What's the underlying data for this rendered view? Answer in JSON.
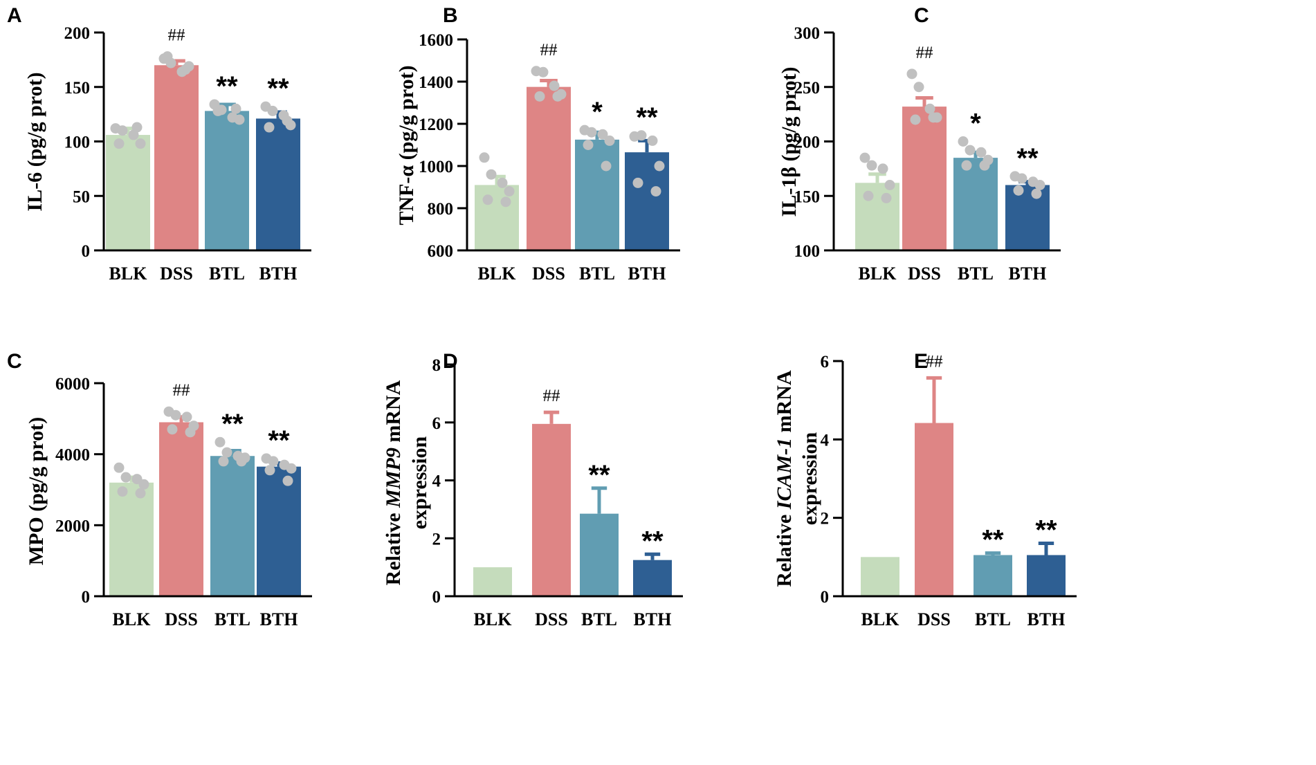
{
  "colors": {
    "BLK": "#c5dcbc",
    "DSS": "#de8585",
    "BTL": "#619db2",
    "BTH": "#2e5f93",
    "dots": "#c0c0c0",
    "axis": "#000000"
  },
  "chart_data": [
    {
      "panel": "A",
      "type": "bar",
      "ylabel_parts": [
        {
          "text": "IL-6 (pg/g prot)",
          "italic": false
        }
      ],
      "ylim": [
        0,
        200
      ],
      "yticks": [
        "0",
        "50",
        "100",
        "150",
        "200"
      ],
      "categories": [
        "BLK",
        "DSS",
        "BTL",
        "BTH"
      ],
      "values": [
        106,
        170,
        128,
        121
      ],
      "errors": [
        6,
        4,
        6,
        6
      ],
      "points": [
        [
          112,
          110,
          106,
          98,
          98,
          113
        ],
        [
          176,
          172,
          164,
          169,
          178,
          166
        ],
        [
          134,
          129,
          122,
          120,
          128,
          130
        ],
        [
          132,
          128,
          124,
          115,
          113,
          119
        ]
      ],
      "annotations": [
        "",
        "##",
        "**",
        "**"
      ]
    },
    {
      "panel": "B",
      "type": "bar",
      "ylabel_parts": [
        {
          "text": "TNF-α (pg/g prot)",
          "italic": false
        }
      ],
      "ylim": [
        600,
        1600
      ],
      "yticks": [
        "600",
        "800",
        "1000",
        "1200",
        "1400",
        "1600"
      ],
      "categories": [
        "BLK",
        "DSS",
        "BTL",
        "BTH"
      ],
      "values": [
        910,
        1375,
        1125,
        1065
      ],
      "errors": [
        40,
        30,
        35,
        55
      ],
      "points": [
        [
          1040,
          960,
          920,
          880,
          840,
          830
        ],
        [
          1450,
          1445,
          1380,
          1340,
          1330,
          1330
        ],
        [
          1170,
          1160,
          1150,
          1120,
          1100,
          1000
        ],
        [
          1140,
          1145,
          1120,
          1000,
          920,
          880
        ]
      ],
      "annotations": [
        "",
        "##",
        "*",
        "**"
      ]
    },
    {
      "panel": "C",
      "type": "bar",
      "ylabel_parts": [
        {
          "text": "IL-1β (pg/g prot)",
          "italic": false
        }
      ],
      "ylim": [
        100,
        300
      ],
      "yticks": [
        "100",
        "150",
        "200",
        "250",
        "300"
      ],
      "categories": [
        "BLK",
        "DSS",
        "BTL",
        "BTH"
      ],
      "values": [
        162,
        232,
        185,
        160
      ],
      "errors": [
        8,
        8,
        5,
        3
      ],
      "points": [
        [
          185,
          178,
          175,
          160,
          150,
          148
        ],
        [
          262,
          250,
          230,
          222,
          220,
          222
        ],
        [
          200,
          192,
          190,
          183,
          178,
          178
        ],
        [
          168,
          166,
          163,
          160,
          155,
          152
        ]
      ],
      "annotations": [
        "",
        "##",
        "*",
        "**"
      ]
    },
    {
      "panel": "C",
      "type": "bar",
      "ylabel_parts": [
        {
          "text": "MPO (pg/g prot)",
          "italic": false
        }
      ],
      "ylim": [
        0,
        6000
      ],
      "yticks": [
        "0",
        "2000",
        "4000",
        "6000"
      ],
      "categories": [
        "BLK",
        "DSS",
        "BTL",
        "BTH"
      ],
      "values": [
        3200,
        4900,
        3950,
        3650
      ],
      "errors": [
        150,
        150,
        150,
        100
      ],
      "points": [
        [
          3620,
          3350,
          3300,
          3150,
          2950,
          2900
        ],
        [
          5200,
          5100,
          5050,
          4800,
          4700,
          4620
        ],
        [
          4340,
          4050,
          3950,
          3900,
          3800,
          3800
        ],
        [
          3880,
          3800,
          3700,
          3600,
          3550,
          3250
        ]
      ],
      "annotations": [
        "",
        "##",
        "**",
        "**"
      ]
    },
    {
      "panel": "D",
      "type": "bar",
      "ylabel_parts": [
        {
          "text": "Relative ",
          "italic": false
        },
        {
          "text": "MMP9",
          "italic": true
        },
        {
          "text": " mRNA",
          "italic": false
        }
      ],
      "ylabel_line2": "expression",
      "ylim": [
        0,
        8
      ],
      "yticks": [
        "0",
        "2",
        "4",
        "6",
        "8"
      ],
      "categories": [
        "BLK",
        "DSS",
        "BTL",
        "BTH"
      ],
      "values": [
        1.0,
        5.95,
        2.85,
        1.25
      ],
      "errors": [
        0,
        0.4,
        0.88,
        0.2
      ],
      "annotations": [
        "",
        "##",
        "**",
        "**"
      ]
    },
    {
      "panel": "E",
      "type": "bar",
      "ylabel_parts": [
        {
          "text": "Relative ",
          "italic": false
        },
        {
          "text": "ICAM-1",
          "italic": true
        },
        {
          "text": " mRNA",
          "italic": false
        }
      ],
      "ylabel_line2": "expression",
      "ylim": [
        0,
        6
      ],
      "yticks": [
        "0",
        "2",
        "4",
        "6"
      ],
      "categories": [
        "BLK",
        "DSS",
        "BTL",
        "BTH"
      ],
      "values": [
        1.0,
        4.42,
        1.05,
        1.05
      ],
      "errors": [
        0,
        1.15,
        0.05,
        0.3
      ],
      "annotations": [
        "",
        "##",
        "**",
        "**"
      ]
    }
  ]
}
